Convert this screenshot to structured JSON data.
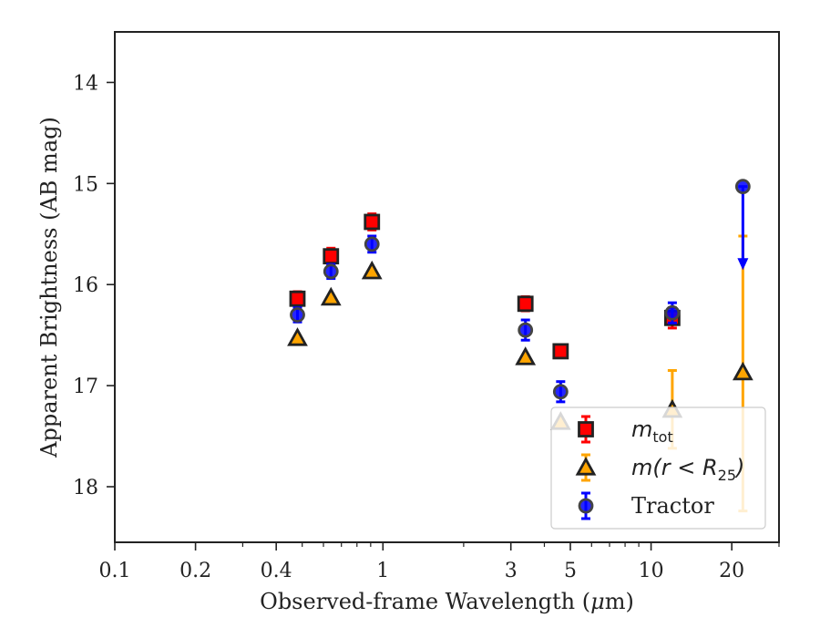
{
  "chart_data": {
    "type": "scatter",
    "xlabel": "Observed-frame Wavelength (",
    "xlabel_unit_mu": "μ",
    "xlabel_unit_rest": "m)",
    "ylabel": "Apparent Brightness (AB mag)",
    "xscale": "log",
    "xlim": [
      0.1,
      30
    ],
    "ylim": [
      18.55,
      13.5
    ],
    "y_inverted": true,
    "grid": false,
    "legend_placement": "lower-right",
    "x_ticks": [
      {
        "value": 0.1,
        "label": "0.1"
      },
      {
        "value": 0.2,
        "label": "0.2"
      },
      {
        "value": 0.4,
        "label": "0.4"
      },
      {
        "value": 1,
        "label": "1"
      },
      {
        "value": 3,
        "label": "3"
      },
      {
        "value": 5,
        "label": "5"
      },
      {
        "value": 10,
        "label": "10"
      },
      {
        "value": 20,
        "label": "20"
      }
    ],
    "x_minor_ticks": [
      0.3,
      0.5,
      0.6,
      0.7,
      0.8,
      0.9,
      2,
      4,
      6,
      7,
      8,
      9,
      30
    ],
    "y_ticks": [
      {
        "value": 14,
        "label": "14"
      },
      {
        "value": 15,
        "label": "15"
      },
      {
        "value": 16,
        "label": "16"
      },
      {
        "value": 17,
        "label": "17"
      },
      {
        "value": 18,
        "label": "18"
      }
    ],
    "series": [
      {
        "key": "mtot",
        "label_main": "m",
        "label_sub": "tot",
        "marker": "square",
        "face": "#ff0000",
        "edge": "#222222",
        "errcolor": "#ff0000",
        "points": [
          {
            "x": 0.48,
            "y": 16.14,
            "err": 0.07
          },
          {
            "x": 0.64,
            "y": 15.72,
            "err": 0.08
          },
          {
            "x": 0.91,
            "y": 15.38,
            "err": 0.08
          },
          {
            "x": 3.4,
            "y": 16.19,
            "err": 0.07
          },
          {
            "x": 4.6,
            "y": 16.66,
            "err": 0.06
          },
          {
            "x": 12.0,
            "y": 16.33,
            "err": 0.1
          }
        ]
      },
      {
        "key": "mr25",
        "label_main": "m(r < R",
        "label_sub": "25",
        "label_tail": ")",
        "marker": "triangle",
        "face": "#ffa500",
        "edge": "#222222",
        "errcolor": "#ffa500",
        "points": [
          {
            "x": 0.48,
            "y": 16.53,
            "err": 0.0
          },
          {
            "x": 0.64,
            "y": 16.13,
            "err": 0.0
          },
          {
            "x": 0.91,
            "y": 15.87,
            "err": 0.0
          },
          {
            "x": 3.4,
            "y": 16.72,
            "err": 0.0
          },
          {
            "x": 4.6,
            "y": 17.36,
            "err": 0.0
          },
          {
            "x": 12.0,
            "y": 17.24,
            "err_up": 0.39,
            "err_down": 0.38
          },
          {
            "x": 22.0,
            "y": 16.87,
            "err_up": 1.35,
            "err_down": 1.37
          }
        ]
      },
      {
        "key": "tractor",
        "label_main": "Tractor",
        "marker": "circle",
        "face": "#0000ff",
        "edge": "#444444",
        "errcolor": "#0000ff",
        "points": [
          {
            "x": 0.48,
            "y": 16.3,
            "err": 0.07
          },
          {
            "x": 0.64,
            "y": 15.87,
            "err": 0.07
          },
          {
            "x": 0.91,
            "y": 15.6,
            "err": 0.08
          },
          {
            "x": 3.4,
            "y": 16.45,
            "err": 0.1
          },
          {
            "x": 4.6,
            "y": 17.06,
            "err": 0.1
          },
          {
            "x": 12.0,
            "y": 16.28,
            "err": 0.1
          },
          {
            "x": 22.0,
            "y": 15.03,
            "upper_limit": true,
            "arrow_to": 15.82
          }
        ]
      }
    ]
  }
}
